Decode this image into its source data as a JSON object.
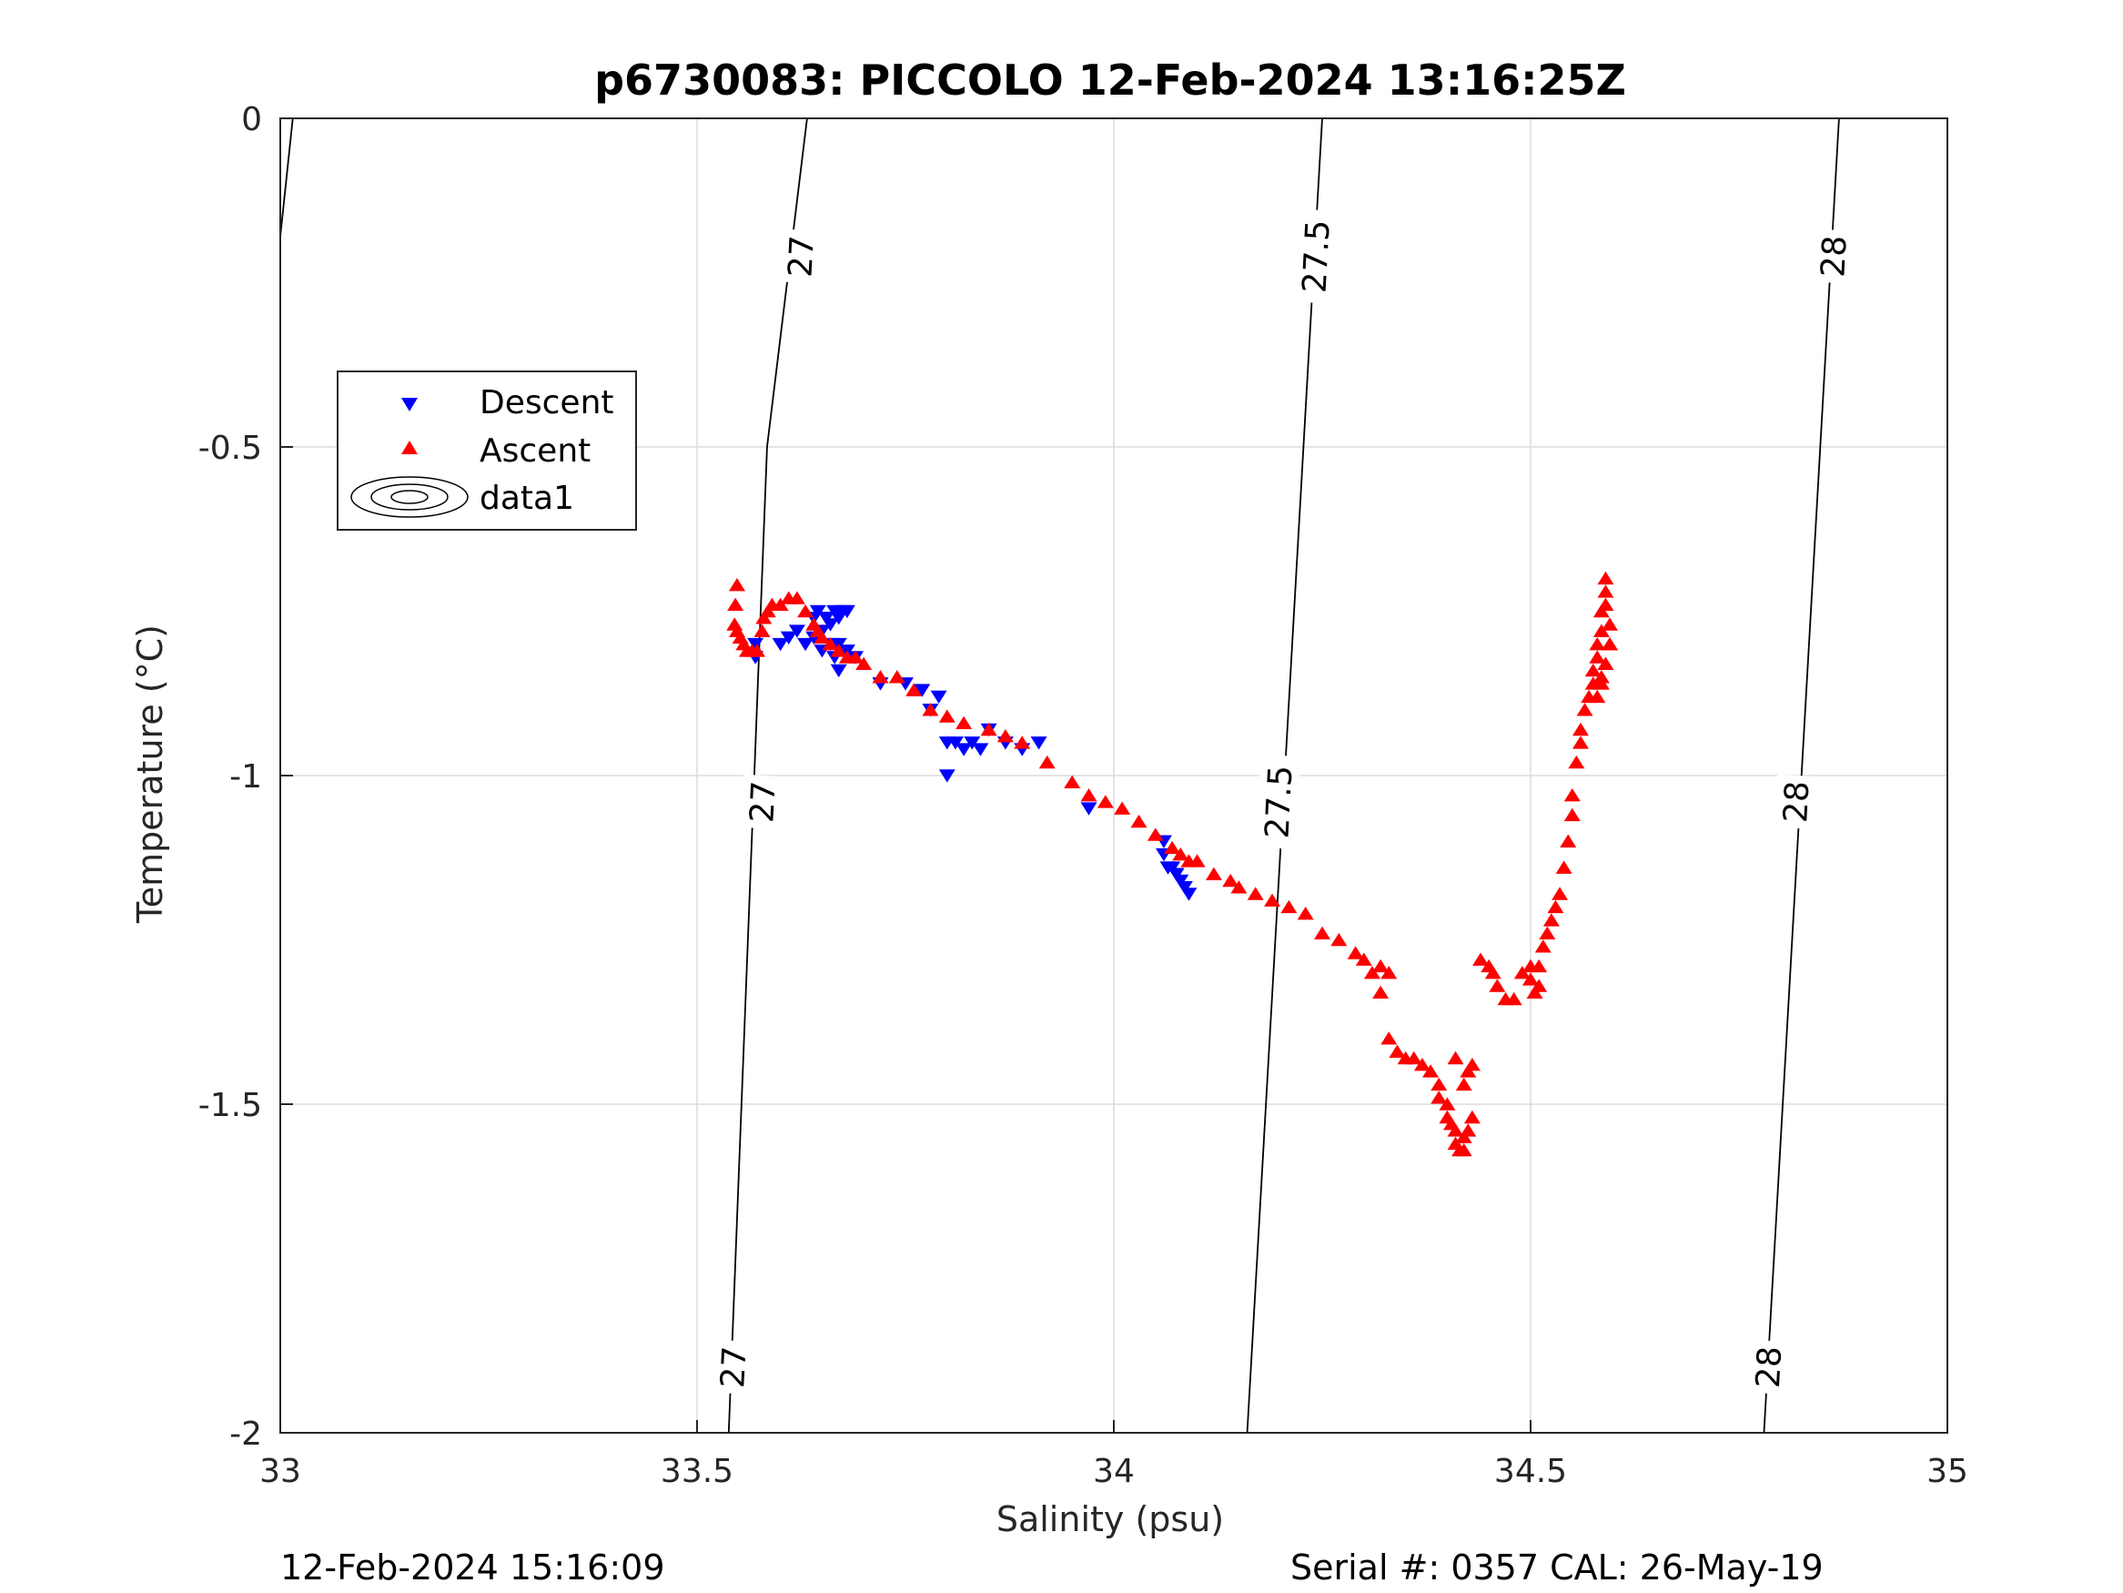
{
  "chart_data": {
    "type": "scatter",
    "title": "p6730083: PICCOLO 12-Feb-2024 13:16:25Z",
    "xlabel": "Salinity (psu)",
    "ylabel": "Temperature (°C)",
    "xlim": [
      33,
      35
    ],
    "ylim": [
      -2,
      0
    ],
    "xticks": [
      "33",
      "33.5",
      "34",
      "34.5",
      "35"
    ],
    "yticks": [
      "0",
      "-0.5",
      "-1",
      "-1.5",
      "-2"
    ],
    "grid": true,
    "legend": {
      "placement": "upper-left",
      "entries": [
        "Descent",
        "Ascent",
        "data1"
      ]
    },
    "footer_left": "12-Feb-2024 15:16:09",
    "footer_right": "Serial #: 0357  CAL: 26-May-19",
    "contours": [
      {
        "label": "27",
        "points": [
          [
            33.632,
            0
          ],
          [
            33.584,
            -0.5
          ],
          [
            33.538,
            -2
          ]
        ]
      },
      {
        "label": "27.5",
        "points": [
          [
            34.25,
            0
          ],
          [
            34.16,
            -2
          ]
        ]
      },
      {
        "label": "28",
        "points": [
          [
            34.87,
            0
          ],
          [
            34.78,
            -2
          ]
        ]
      },
      {
        "label": "",
        "points": [
          [
            33.015,
            0
          ],
          [
            33.0,
            -0.18
          ]
        ]
      }
    ],
    "contour_label_positions": [
      {
        "label": "27",
        "x": 33.624,
        "y": -0.21
      },
      {
        "label": "27",
        "x": 33.578,
        "y": -1.04
      },
      {
        "label": "27",
        "x": 33.543,
        "y": -1.9
      },
      {
        "label": "27.5",
        "x": 34.242,
        "y": -0.21
      },
      {
        "label": "27.5",
        "x": 34.197,
        "y": -1.04
      },
      {
        "label": "28",
        "x": 34.863,
        "y": -0.21
      },
      {
        "label": "28",
        "x": 34.818,
        "y": -1.04
      },
      {
        "label": "28",
        "x": 34.785,
        "y": -1.9
      }
    ],
    "series": [
      {
        "name": "Descent",
        "color": "#0000ff",
        "marker": "triangle-down",
        "x": [
          33.57,
          33.57,
          33.6,
          33.61,
          33.62,
          33.63,
          33.64,
          33.645,
          33.65,
          33.655,
          33.66,
          33.665,
          33.67,
          33.675,
          33.68,
          33.64,
          33.65,
          33.66,
          33.67,
          33.665,
          33.67,
          33.68,
          33.69,
          33.72,
          33.75,
          33.77,
          33.78,
          33.79,
          33.8,
          33.81,
          33.83,
          33.8,
          33.82,
          33.85,
          33.84,
          33.87,
          33.89,
          33.91,
          33.97,
          34.06,
          34.06,
          34.065,
          34.07,
          34.075,
          34.08,
          34.085,
          34.09
        ],
        "y": [
          -0.8,
          -0.82,
          -0.8,
          -0.79,
          -0.78,
          -0.8,
          -0.76,
          -0.75,
          -0.78,
          -0.76,
          -0.77,
          -0.75,
          -0.76,
          -0.75,
          -0.75,
          -0.79,
          -0.81,
          -0.8,
          -0.84,
          -0.82,
          -0.8,
          -0.81,
          -0.82,
          -0.86,
          -0.86,
          -0.87,
          -0.9,
          -0.88,
          -0.95,
          -0.95,
          -0.95,
          -1.0,
          -0.96,
          -0.93,
          -0.96,
          -0.95,
          -0.96,
          -0.95,
          -1.05,
          -1.1,
          -1.12,
          -1.14,
          -1.14,
          -1.15,
          -1.16,
          -1.17,
          -1.18
        ]
      },
      {
        "name": "Ascent",
        "color": "#ff0000",
        "marker": "triangle-up",
        "x": [
          33.548,
          33.546,
          33.545,
          33.548,
          33.552,
          33.556,
          33.56,
          33.566,
          33.572,
          33.578,
          33.58,
          33.585,
          33.59,
          33.6,
          33.61,
          33.62,
          33.63,
          33.64,
          33.645,
          33.65,
          33.66,
          33.67,
          33.68,
          33.69,
          33.7,
          33.72,
          33.74,
          33.76,
          33.78,
          33.8,
          33.82,
          33.85,
          33.87,
          33.89,
          33.92,
          33.95,
          33.97,
          33.99,
          34.01,
          34.03,
          34.05,
          34.07,
          34.08,
          34.09,
          34.1,
          34.12,
          34.14,
          34.15,
          34.17,
          34.19,
          34.21,
          34.23,
          34.25,
          34.27,
          34.29,
          34.3,
          34.31,
          34.32,
          34.32,
          34.33,
          34.33,
          34.34,
          34.35,
          34.36,
          34.37,
          34.38,
          34.39,
          34.39,
          34.4,
          34.4,
          34.405,
          34.41,
          34.41,
          34.415,
          34.42,
          34.42,
          34.425,
          34.43,
          34.42,
          34.41,
          34.425,
          34.43,
          34.44,
          34.45,
          34.455,
          34.46,
          34.47,
          34.48,
          34.49,
          34.5,
          34.5,
          34.505,
          34.51,
          34.51,
          34.515,
          34.52,
          34.525,
          34.53,
          34.535,
          34.54,
          34.545,
          34.55,
          34.55,
          34.555,
          34.56,
          34.56,
          34.565,
          34.57,
          34.575,
          34.575,
          34.58,
          34.58,
          34.585,
          34.585,
          34.59,
          34.59,
          34.59,
          34.595,
          34.595,
          34.59,
          34.585,
          34.58,
          34.585,
          34.59,
          34.595
        ],
        "y": [
          -0.71,
          -0.74,
          -0.77,
          -0.78,
          -0.79,
          -0.8,
          -0.81,
          -0.81,
          -0.81,
          -0.78,
          -0.76,
          -0.75,
          -0.74,
          -0.74,
          -0.73,
          -0.73,
          -0.75,
          -0.77,
          -0.78,
          -0.79,
          -0.8,
          -0.81,
          -0.82,
          -0.82,
          -0.83,
          -0.85,
          -0.85,
          -0.87,
          -0.9,
          -0.91,
          -0.92,
          -0.93,
          -0.94,
          -0.95,
          -0.98,
          -1.01,
          -1.03,
          -1.04,
          -1.05,
          -1.07,
          -1.09,
          -1.11,
          -1.12,
          -1.13,
          -1.13,
          -1.15,
          -1.16,
          -1.17,
          -1.18,
          -1.19,
          -1.2,
          -1.21,
          -1.24,
          -1.25,
          -1.27,
          -1.28,
          -1.3,
          -1.29,
          -1.33,
          -1.3,
          -1.4,
          -1.42,
          -1.43,
          -1.43,
          -1.44,
          -1.45,
          -1.47,
          -1.49,
          -1.5,
          -1.52,
          -1.53,
          -1.54,
          -1.56,
          -1.57,
          -1.57,
          -1.55,
          -1.54,
          -1.52,
          -1.47,
          -1.43,
          -1.45,
          -1.44,
          -1.28,
          -1.29,
          -1.3,
          -1.32,
          -1.34,
          -1.34,
          -1.3,
          -1.29,
          -1.31,
          -1.33,
          -1.32,
          -1.29,
          -1.26,
          -1.24,
          -1.22,
          -1.2,
          -1.18,
          -1.14,
          -1.1,
          -1.06,
          -1.03,
          -0.98,
          -0.95,
          -0.93,
          -0.9,
          -0.88,
          -0.86,
          -0.84,
          -0.82,
          -0.8,
          -0.78,
          -0.75,
          -0.72,
          -0.7,
          -0.74,
          -0.77,
          -0.8,
          -0.83,
          -0.86,
          -0.88,
          -0.85,
          -0.83,
          -0.8
        ]
      }
    ]
  }
}
